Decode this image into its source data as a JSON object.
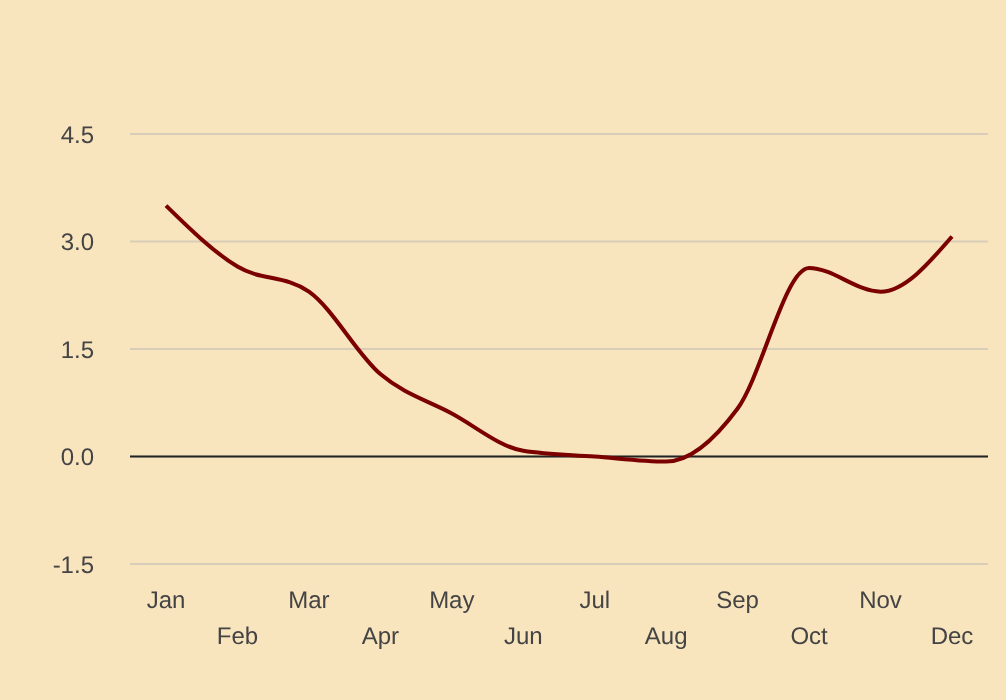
{
  "chart_data": {
    "type": "line",
    "categories": [
      "Jan",
      "Feb",
      "Mar",
      "Apr",
      "May",
      "Jun",
      "Jul",
      "Aug",
      "Sep",
      "Oct",
      "Nov",
      "Dec"
    ],
    "series": [
      {
        "color": "#7b0000",
        "values": [
          3.5,
          2.65,
          2.3,
          1.15,
          0.6,
          0.08,
          0,
          -0.07,
          0.67,
          2.63,
          2.3,
          3.07
        ]
      }
    ],
    "ylim": [
      -1.5,
      4.5
    ],
    "yticks": [
      -1.5,
      {
        "value": 0,
        "label": "0.0"
      },
      1.5,
      {
        "value": 3,
        "label": "3.0"
      },
      4.5
    ],
    "grid": "y",
    "marker": "none",
    "line_style": "solid",
    "ref_lines": [
      {
        "axis": "y",
        "value": 0,
        "color": "#222222"
      }
    ]
  }
}
